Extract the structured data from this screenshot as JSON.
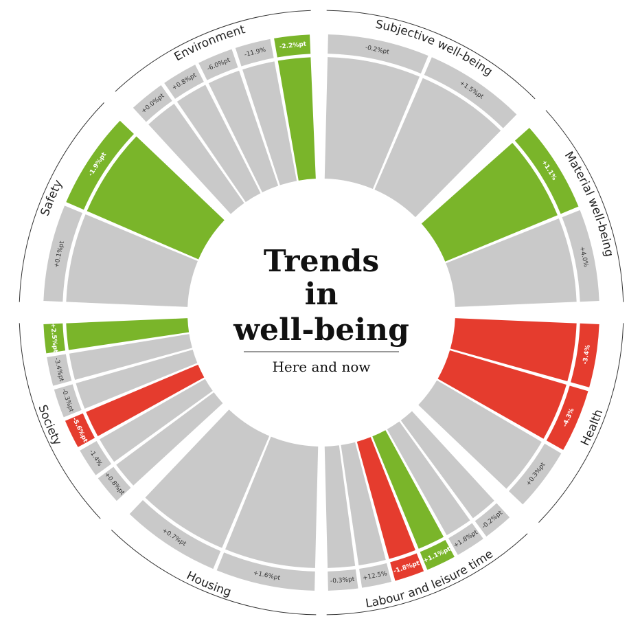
{
  "title_lines": [
    "Trends",
    "in",
    "well-being"
  ],
  "subtitle": "Here and now",
  "colors": {
    "green": "#7ab52a",
    "red": "#e53c2e",
    "grey": "#c9c9c9"
  },
  "groups": [
    {
      "name": "Subjective well-being",
      "start": 1,
      "end": 45,
      "items": [
        {
          "label": "-0.2%pt",
          "color": "grey"
        },
        {
          "label": "+1.5%pt",
          "color": "grey"
        }
      ]
    },
    {
      "name": "Material well-being",
      "start": 48,
      "end": 88,
      "items": [
        {
          "label": "+1.1%",
          "color": "green"
        },
        {
          "label": "+4.0%",
          "color": "grey"
        }
      ]
    },
    {
      "name": "Health",
      "start": 92,
      "end": 134,
      "items": [
        {
          "label": "-3.4%",
          "color": "red"
        },
        {
          "label": "-4.3%",
          "color": "red"
        },
        {
          "label": "+0.3%pt",
          "color": "grey"
        }
      ]
    },
    {
      "name": "Labour and leisure time",
      "start": 137,
      "end": 179,
      "items": [
        {
          "label": "-0.2%pt",
          "color": "grey"
        },
        {
          "label": "+1.8%pt",
          "color": "grey"
        },
        {
          "label": "+1.1%pt",
          "color": "green"
        },
        {
          "label": "-1.8%pt",
          "color": "red"
        },
        {
          "label": "+12.5%",
          "color": "grey"
        },
        {
          "label": "-0.3%pt",
          "color": "grey"
        }
      ]
    },
    {
      "name": "Housing",
      "start": 181,
      "end": 224,
      "items": [
        {
          "label": "+1.6%pt",
          "color": "grey"
        },
        {
          "label": "+0.7%pt",
          "color": "grey"
        }
      ]
    },
    {
      "name": "Society",
      "start": 227,
      "end": 268,
      "items": [
        {
          "label": "+0.8%pt",
          "color": "grey"
        },
        {
          "label": "-1.4%",
          "color": "grey"
        },
        {
          "label": "-5.6%pt",
          "color": "red"
        },
        {
          "label": "-0.3%pt",
          "color": "grey"
        },
        {
          "label": "-3.4%pt",
          "color": "grey"
        },
        {
          "label": "+2.5%pt",
          "color": "green"
        }
      ]
    },
    {
      "name": "Safety",
      "start": 272,
      "end": 314,
      "items": [
        {
          "label": "+0.1%pt",
          "color": "grey"
        },
        {
          "label": "-1.9%pt",
          "color": "green"
        }
      ]
    },
    {
      "name": "Environment",
      "start": 317,
      "end": 358,
      "items": [
        {
          "label": "+0.0%pt",
          "color": "grey"
        },
        {
          "label": "+0.8%pt",
          "color": "grey"
        },
        {
          "label": "-6.0%pt",
          "color": "grey"
        },
        {
          "label": "-11.9%",
          "color": "grey"
        },
        {
          "label": "-2.2%pt",
          "color": "green"
        }
      ]
    }
  ]
}
